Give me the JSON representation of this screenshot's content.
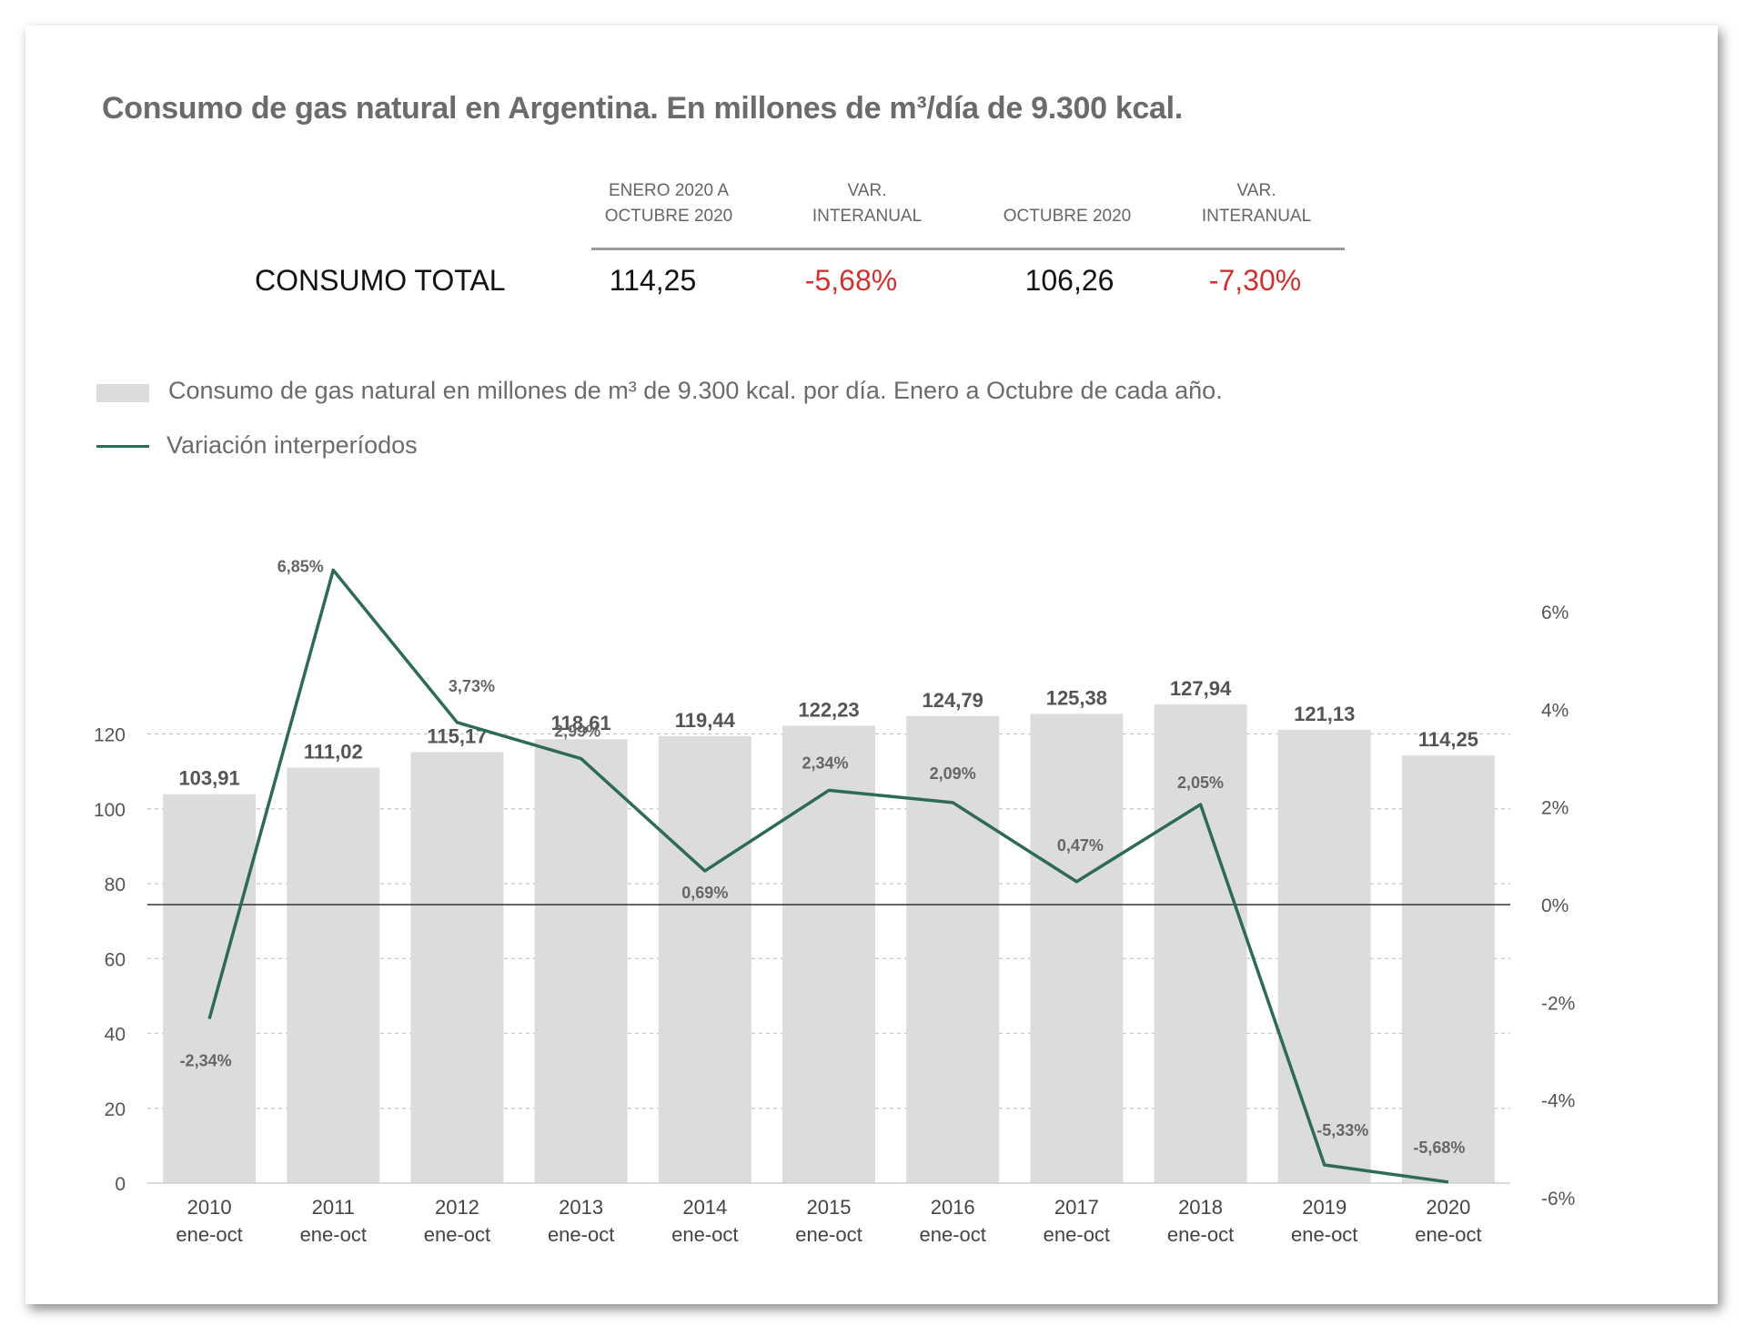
{
  "title": "Consumo de gas natural en Argentina. En millones de m³/día de 9.300 kcal.",
  "summary": {
    "headers": [
      "ENERO 2020 A\nOCTUBRE 2020",
      "VAR.\nINTERANUAL",
      "OCTUBRE 2020",
      "VAR.\nINTERANUAL"
    ],
    "row_label": "CONSUMO TOTAL",
    "values": [
      "114,25",
      "-5,68%",
      "106,26",
      "-7,30%"
    ]
  },
  "legend": {
    "bars": "Consumo de gas natural en millones de m³ de 9.300 kcal. por día. Enero a Octubre de cada año.",
    "line": "Variación interperíodos"
  },
  "colors": {
    "bar": "#dcdcdc",
    "line": "#2e6b55",
    "negative": "#d0332d"
  },
  "chart_data": {
    "type": "bar+line",
    "categories": [
      "2010",
      "2011",
      "2012",
      "2013",
      "2014",
      "2015",
      "2016",
      "2017",
      "2018",
      "2019",
      "2020"
    ],
    "category_sublabel": "ene-oct",
    "series": [
      {
        "name": "Consumo de gas natural en millones de m³ de 9.300 kcal. por día. Enero a Octubre de cada año.",
        "type": "bar",
        "axis": "left",
        "values": [
          103.91,
          111.02,
          115.17,
          118.61,
          119.44,
          122.23,
          124.79,
          125.38,
          127.94,
          121.13,
          114.25
        ],
        "labels": [
          "103,91",
          "111,02",
          "115,17",
          "118,61",
          "119,44",
          "122,23",
          "124,79",
          "125,38",
          "127,94",
          "121,13",
          "114,25"
        ]
      },
      {
        "name": "Variación interperíodos",
        "type": "line",
        "axis": "right",
        "values": [
          -2.34,
          6.85,
          3.73,
          2.99,
          0.69,
          2.34,
          2.09,
          0.47,
          2.05,
          -5.33,
          -5.68
        ],
        "labels": [
          "-2,34%",
          "6,85%",
          "3,73%",
          "2,99%",
          "0,69%",
          "2,34%",
          "2,09%",
          "0,47%",
          "2,05%",
          "-5,33%",
          "-5,68%"
        ]
      }
    ],
    "y_left": {
      "ticks": [
        0,
        20,
        40,
        60,
        80,
        100,
        120
      ],
      "range": [
        0,
        160
      ]
    },
    "y_right": {
      "ticks": [
        6,
        4,
        2,
        0,
        -2,
        -4,
        -6
      ],
      "tick_labels": [
        "6%",
        "4%",
        "2%",
        "0%",
        "-2%",
        "-4%",
        "-6%"
      ],
      "range": [
        -6,
        6
      ]
    },
    "grid": true,
    "legend_position": "top-left"
  }
}
